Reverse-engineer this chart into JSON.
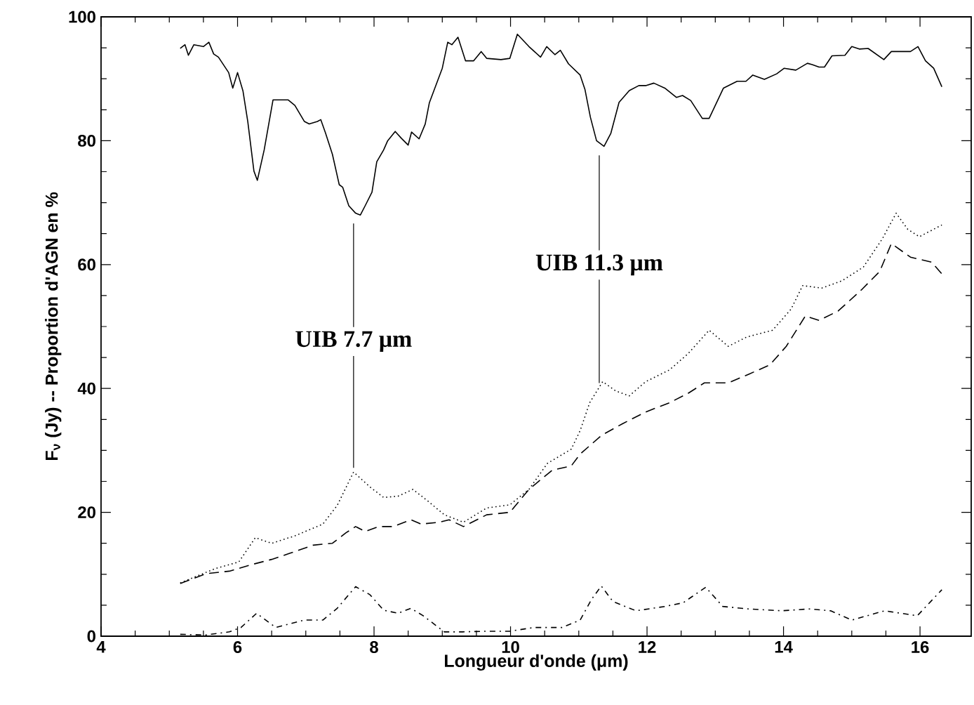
{
  "chart_data": {
    "type": "line",
    "xlabel": "Longueur d'onde (μm)",
    "ylabel": "F$_{ν}$  (Jy)  --  Proportion d'AGN en %",
    "xlim": [
      4,
      16.75
    ],
    "ylim": [
      0,
      100
    ],
    "xticks": [
      4,
      6,
      8,
      10,
      12,
      14,
      16
    ],
    "yticks": [
      0,
      20,
      40,
      60,
      80,
      100
    ],
    "grid": false,
    "ref_lines": [
      {
        "axis": "x",
        "value": 7.7,
        "label": "UIB 7.7 μm",
        "color": "#000000"
      },
      {
        "axis": "x",
        "value": 11.3,
        "label": "UIB 11.3 μm",
        "color": "#000000"
      }
    ],
    "series": [
      {
        "color": "#000000",
        "line_style": "solid",
        "x": [
          5.16,
          5.23,
          5.28,
          5.36,
          5.5,
          5.58,
          5.65,
          5.72,
          5.87,
          5.93,
          6.0,
          6.08,
          6.15,
          6.24,
          6.29,
          6.39,
          6.52,
          6.74,
          6.84,
          6.98,
          7.05,
          7.17,
          7.22,
          7.29,
          7.39,
          7.49,
          7.54,
          7.63,
          7.73,
          7.8,
          7.87,
          7.97,
          8.04,
          8.14,
          8.2,
          8.31,
          8.4,
          8.5,
          8.55,
          8.66,
          8.75,
          8.81,
          9.0,
          9.08,
          9.14,
          9.23,
          9.34,
          9.46,
          9.57,
          9.65,
          9.86,
          9.99,
          10.1,
          10.27,
          10.44,
          10.53,
          10.65,
          10.73,
          10.85,
          11.02,
          11.09,
          11.17,
          11.26,
          11.37,
          11.47,
          11.59,
          11.74,
          11.88,
          11.98,
          12.1,
          12.26,
          12.43,
          12.52,
          12.64,
          12.81,
          12.91,
          13.12,
          13.32,
          13.45,
          13.55,
          13.72,
          13.9,
          14.01,
          14.18,
          14.35,
          14.42,
          14.52,
          14.6,
          14.71,
          14.9,
          15.0,
          15.11,
          15.24,
          15.47,
          15.58,
          15.86,
          15.97,
          16.08,
          16.2,
          16.32
        ],
        "values": [
          94.9,
          95.5,
          93.8,
          95.5,
          95.2,
          95.9,
          94.0,
          93.5,
          91.0,
          88.5,
          91.0,
          88.0,
          83.1,
          75.1,
          73.6,
          78.5,
          86.6,
          86.6,
          85.7,
          83.1,
          82.7,
          83.1,
          83.4,
          81.2,
          77.8,
          72.9,
          72.5,
          69.5,
          68.3,
          68.0,
          69.5,
          71.7,
          76.6,
          78.5,
          80.0,
          81.5,
          80.4,
          79.3,
          81.4,
          80.3,
          82.7,
          86.1,
          91.7,
          95.9,
          95.5,
          96.7,
          92.9,
          92.9,
          94.4,
          93.3,
          93.1,
          93.3,
          97.2,
          95.2,
          93.5,
          95.2,
          93.9,
          94.6,
          92.4,
          90.6,
          88.3,
          83.8,
          80.0,
          79.1,
          81.2,
          86.2,
          88.1,
          88.9,
          88.9,
          89.3,
          88.5,
          87.0,
          87.3,
          86.5,
          83.6,
          83.6,
          88.5,
          89.6,
          89.6,
          90.6,
          89.9,
          90.8,
          91.7,
          91.4,
          92.5,
          92.3,
          91.9,
          91.9,
          93.7,
          93.8,
          95.2,
          94.8,
          94.9,
          93.1,
          94.4,
          94.4,
          95.2,
          92.9,
          91.7,
          88.7
        ]
      },
      {
        "color": "#000000",
        "line_style": "dotted",
        "x": [
          5.16,
          5.67,
          6.02,
          6.26,
          6.5,
          6.84,
          7.25,
          7.46,
          7.7,
          7.94,
          8.14,
          8.35,
          8.57,
          8.79,
          9.03,
          9.31,
          9.65,
          9.99,
          10.27,
          10.54,
          10.89,
          11.02,
          11.16,
          11.35,
          11.54,
          11.74,
          11.98,
          12.33,
          12.6,
          12.91,
          13.19,
          13.46,
          13.84,
          14.11,
          14.28,
          14.56,
          14.86,
          15.17,
          15.45,
          15.65,
          15.82,
          15.99,
          16.32
        ],
        "values": [
          8.6,
          10.9,
          12.0,
          15.9,
          15.0,
          16.2,
          18.1,
          21.1,
          26.5,
          24.1,
          22.4,
          22.6,
          23.7,
          21.8,
          19.6,
          18.4,
          20.7,
          21.2,
          23.7,
          27.9,
          30.2,
          33.2,
          37.7,
          41.1,
          39.6,
          38.8,
          41.1,
          43.0,
          45.6,
          49.4,
          46.8,
          48.3,
          49.4,
          52.8,
          56.6,
          56.2,
          57.4,
          59.6,
          64.2,
          68.3,
          65.7,
          64.5,
          66.4
        ]
      },
      {
        "color": "#000000",
        "line_style": "dashed",
        "x": [
          5.16,
          5.54,
          5.88,
          6.22,
          6.5,
          6.77,
          7.11,
          7.39,
          7.59,
          7.73,
          7.87,
          8.07,
          8.28,
          8.54,
          8.69,
          8.96,
          9.1,
          9.31,
          9.65,
          9.99,
          10.27,
          10.61,
          10.89,
          11.02,
          11.33,
          11.64,
          11.98,
          12.33,
          12.6,
          12.84,
          13.19,
          13.49,
          13.8,
          14.04,
          14.32,
          14.52,
          14.8,
          15.14,
          15.41,
          15.58,
          15.86,
          16.17,
          16.32
        ],
        "values": [
          8.5,
          10.1,
          10.5,
          11.6,
          12.4,
          13.4,
          14.7,
          15.0,
          16.7,
          17.7,
          16.9,
          17.7,
          17.7,
          18.8,
          18.1,
          18.4,
          18.8,
          17.7,
          19.6,
          20.0,
          23.7,
          26.8,
          27.5,
          29.4,
          32.4,
          34.3,
          36.2,
          37.7,
          39.2,
          40.9,
          40.9,
          42.3,
          43.8,
          46.8,
          51.7,
          51.0,
          52.5,
          55.9,
          58.9,
          63.4,
          61.2,
          60.4,
          58.5
        ]
      },
      {
        "color": "#000000",
        "line_style": "dashdot",
        "x": [
          5.16,
          5.54,
          5.88,
          6.05,
          6.28,
          6.56,
          6.98,
          7.25,
          7.46,
          7.73,
          7.94,
          8.14,
          8.35,
          8.54,
          8.72,
          9.03,
          9.31,
          9.65,
          9.99,
          10.34,
          10.75,
          11.02,
          11.19,
          11.33,
          11.5,
          11.84,
          12.26,
          12.53,
          12.86,
          13.11,
          13.49,
          13.97,
          14.38,
          14.69,
          15.0,
          15.48,
          15.96,
          16.32
        ],
        "values": [
          0.3,
          0.2,
          0.7,
          1.4,
          3.7,
          1.4,
          2.6,
          2.6,
          4.5,
          8.0,
          6.7,
          4.2,
          3.7,
          4.5,
          3.3,
          0.7,
          0.7,
          0.8,
          0.8,
          1.4,
          1.4,
          2.6,
          6.0,
          8.1,
          5.6,
          4.1,
          4.8,
          5.4,
          7.9,
          4.8,
          4.4,
          4.1,
          4.4,
          4.1,
          2.6,
          4.1,
          3.3,
          7.5
        ]
      }
    ]
  }
}
